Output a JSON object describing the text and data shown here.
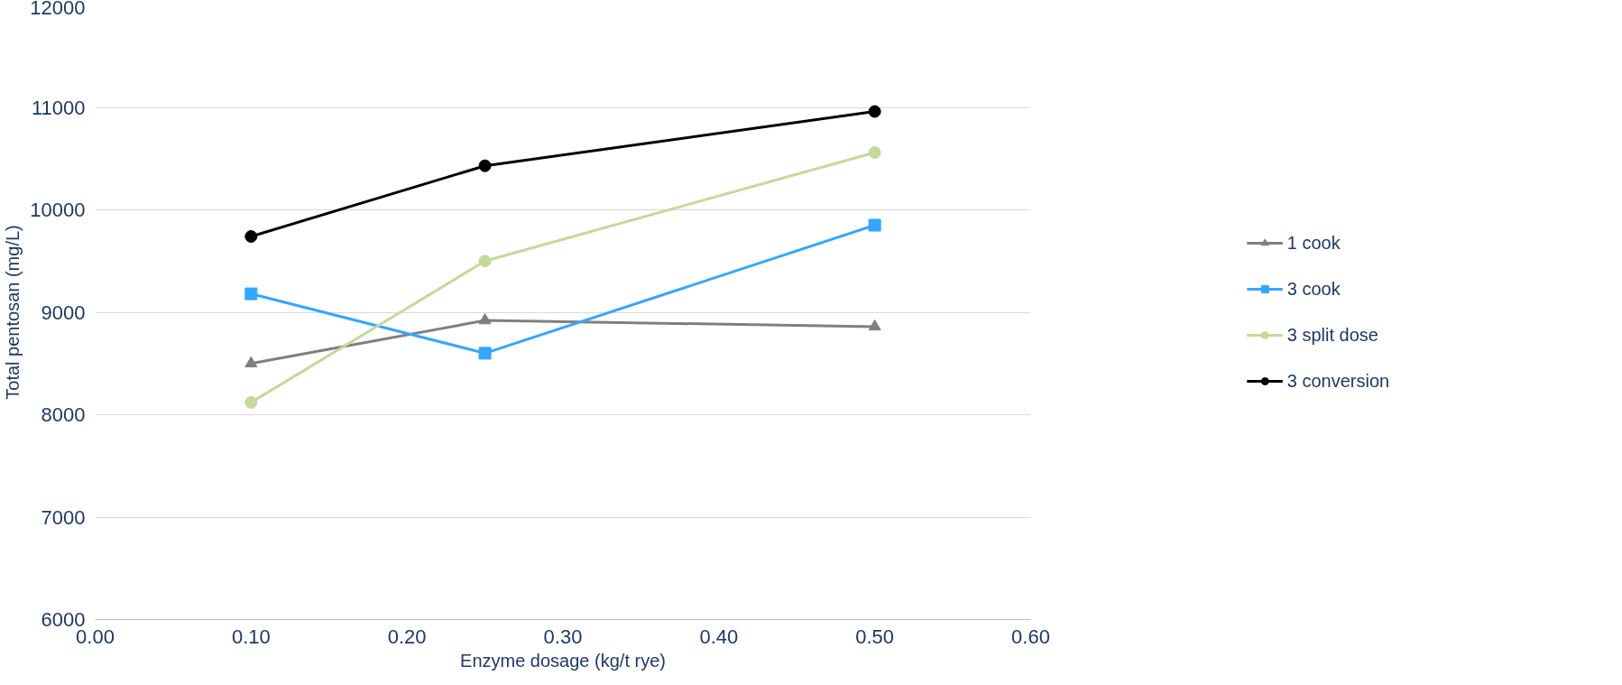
{
  "chart_data": {
    "type": "line",
    "xlabel": "Enzyme dosage (kg/t rye)",
    "ylabel": "Total pentosan (mg/L)",
    "x": [
      0.1,
      0.25,
      0.5
    ],
    "series": [
      {
        "name": "1 cook",
        "color": "#7f7f7f",
        "marker": "triangle",
        "values": [
          8500,
          8920,
          8860
        ]
      },
      {
        "name": "3 cook",
        "color": "#33a7ff",
        "marker": "square",
        "values": [
          9180,
          8600,
          9850
        ]
      },
      {
        "name": "3 split dose",
        "color": "#c5d99a",
        "marker": "circle",
        "values": [
          8120,
          9500,
          10560
        ]
      },
      {
        "name": "3 conversion",
        "color": "#000000",
        "marker": "circle",
        "values": [
          9740,
          10430,
          10960
        ]
      }
    ],
    "xlim": [
      0,
      0.6
    ],
    "xticks": [
      {
        "value": 0,
        "label": "0.00"
      },
      {
        "value": 0.1,
        "label": "0.10"
      },
      {
        "value": 0.2,
        "label": "0.20"
      },
      {
        "value": 0.3,
        "label": "0.30"
      },
      {
        "value": 0.4,
        "label": "0.40"
      },
      {
        "value": 0.5,
        "label": "0.50"
      },
      {
        "value": 0.6,
        "label": "0.60"
      }
    ],
    "ylim": [
      6000,
      12000
    ],
    "yticks": [
      6000,
      7000,
      8000,
      9000,
      10000,
      11000,
      12000
    ],
    "grid": "y",
    "legend": "right",
    "line_style": "solid"
  }
}
